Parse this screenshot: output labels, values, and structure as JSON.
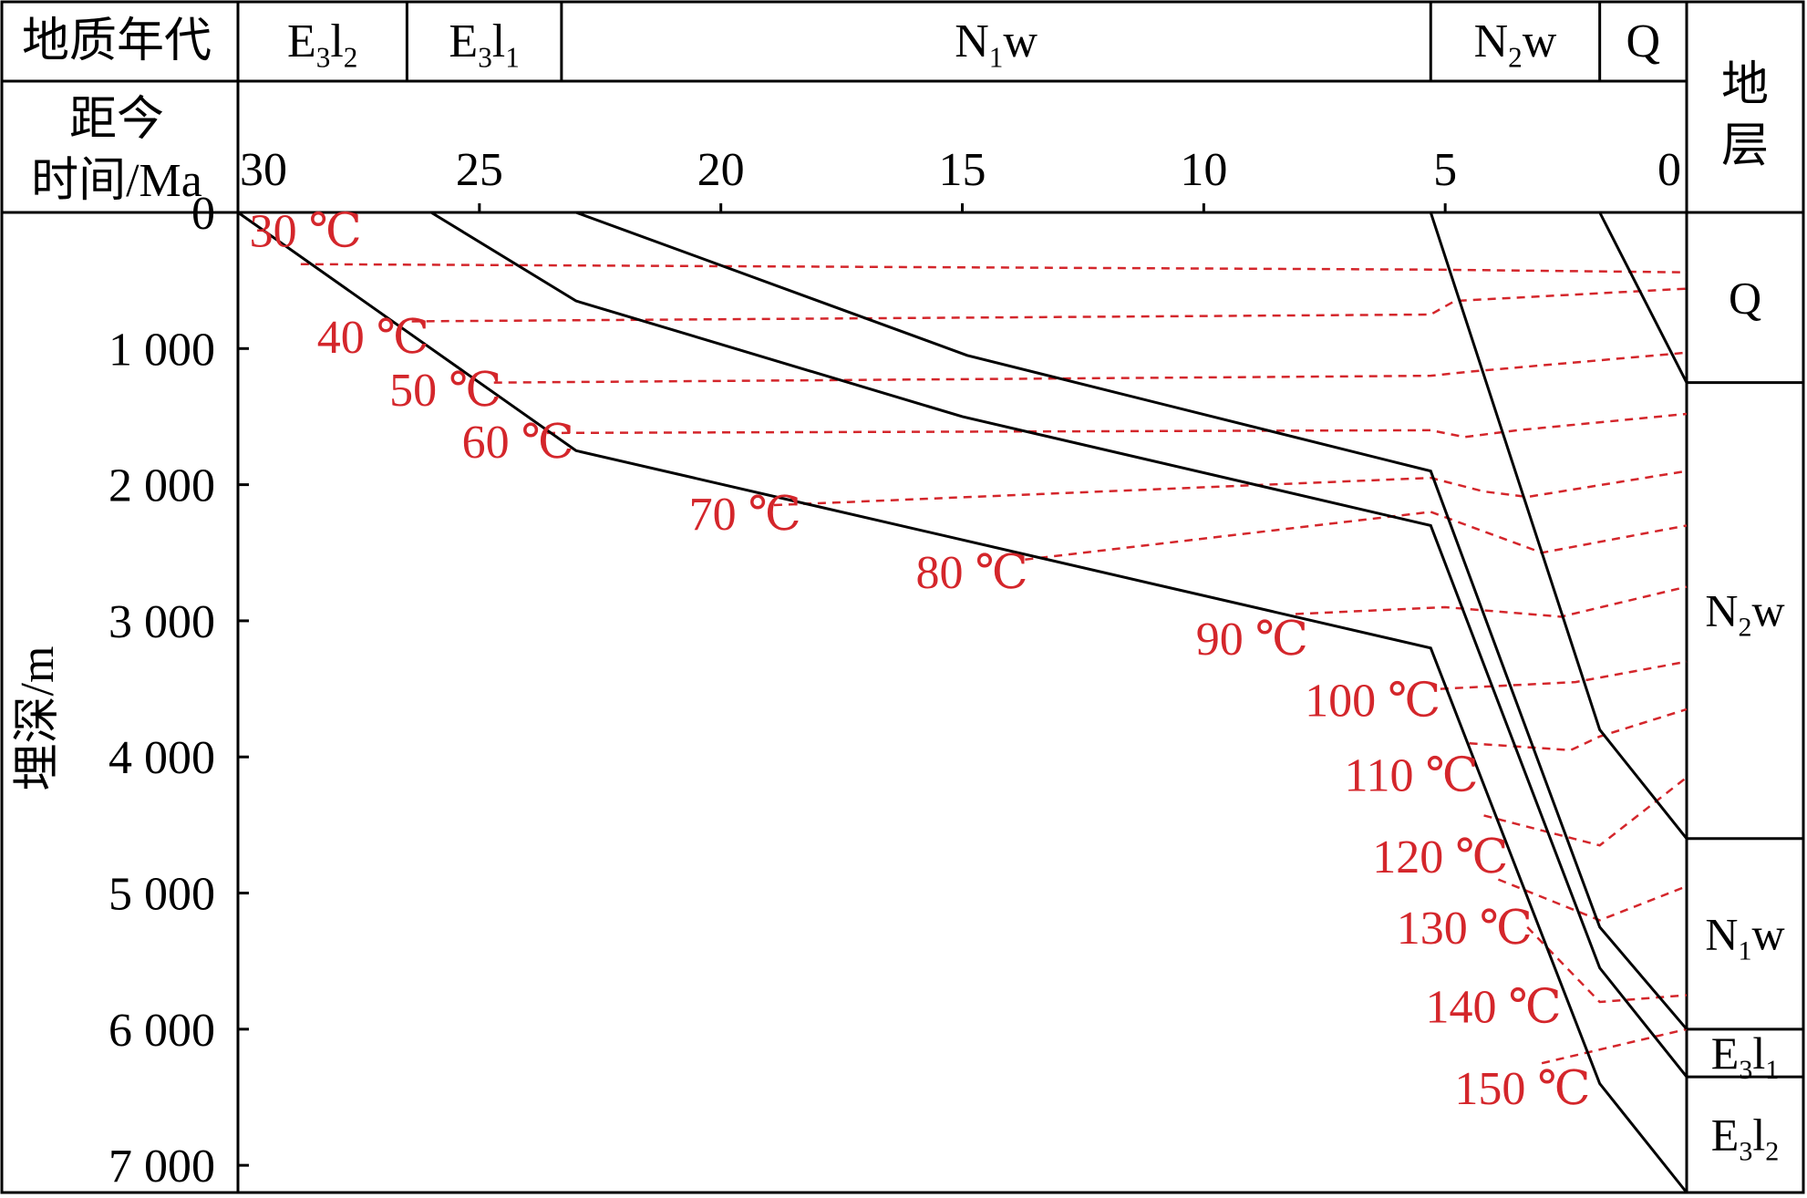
{
  "header": {
    "era_label": "地质年代",
    "time_label_line1": "距今",
    "time_label_line2": "时间/Ma",
    "strata_label_line1": "地",
    "strata_label_line2": "层",
    "depth_label": "埋深/m"
  },
  "periods": [
    {
      "main": "E",
      "sub": "3",
      "main2": "l",
      "sub2": "2",
      "start_ma": 30,
      "end_ma": 26.5
    },
    {
      "main": "E",
      "sub": "3",
      "main2": "l",
      "sub2": "1",
      "start_ma": 26.5,
      "end_ma": 23.3
    },
    {
      "main": "N",
      "sub": "1",
      "main2": "w",
      "sub2": "",
      "start_ma": 23.3,
      "end_ma": 5.3
    },
    {
      "main": "N",
      "sub": "2",
      "main2": "w",
      "sub2": "",
      "start_ma": 5.3,
      "end_ma": 1.8
    },
    {
      "main": "Q",
      "sub": "",
      "main2": "",
      "sub2": "",
      "start_ma": 1.8,
      "end_ma": 0
    }
  ],
  "strata_column": [
    {
      "main": "Q",
      "sub": "",
      "main2": "",
      "sub2": "",
      "top_m": 0,
      "base_m": 1250
    },
    {
      "main": "N",
      "sub": "2",
      "main2": "w",
      "sub2": "",
      "top_m": 1250,
      "base_m": 4600
    },
    {
      "main": "N",
      "sub": "1",
      "main2": "w",
      "sub2": "",
      "top_m": 4600,
      "base_m": 6000
    },
    {
      "main": "E",
      "sub": "3",
      "main2": "l",
      "sub2": "1",
      "top_m": 6000,
      "base_m": 6350
    },
    {
      "main": "E",
      "sub": "3",
      "main2": "l",
      "sub2": "2",
      "top_m": 6350,
      "base_m": 7200
    }
  ],
  "chart_data": {
    "type": "line",
    "xlabel": "距今时间/Ma",
    "ylabel": "埋深/m",
    "xlim": [
      30,
      0
    ],
    "ylim": [
      0,
      7200
    ],
    "x_ticks": [
      30,
      25,
      20,
      15,
      10,
      5,
      0
    ],
    "x_tick_labels": [
      "30",
      "25",
      "20",
      "15",
      "10",
      "5",
      "0"
    ],
    "y_ticks": [
      0,
      1000,
      2000,
      3000,
      4000,
      5000,
      6000,
      7000
    ],
    "y_tick_labels": [
      "0",
      "1 000",
      "2 000",
      "3 000",
      "4 000",
      "5 000",
      "6 000",
      "7 000"
    ],
    "burial_curves": [
      {
        "points": [
          [
            30,
            0
          ],
          [
            23.0,
            1750
          ],
          [
            5.3,
            3200
          ],
          [
            1.8,
            6400
          ],
          [
            0,
            7200
          ]
        ]
      },
      {
        "points": [
          [
            26.0,
            0
          ],
          [
            23.0,
            650
          ],
          [
            15.0,
            1500
          ],
          [
            5.3,
            2300
          ],
          [
            1.8,
            5550
          ],
          [
            0,
            6350
          ]
        ]
      },
      {
        "points": [
          [
            23.0,
            0
          ],
          [
            14.9,
            1050
          ],
          [
            5.3,
            1900
          ],
          [
            1.8,
            5250
          ],
          [
            0,
            6000
          ]
        ]
      },
      {
        "points": [
          [
            5.3,
            0
          ],
          [
            1.8,
            3800
          ],
          [
            0,
            4600
          ]
        ]
      },
      {
        "points": [
          [
            1.8,
            0
          ],
          [
            0,
            1250
          ]
        ]
      }
    ],
    "isotherms": [
      {
        "label": "30 ℃",
        "label_at": [
          28.6,
          250
        ],
        "points": [
          [
            28.7,
            380
          ],
          [
            5.3,
            420
          ],
          [
            0,
            440
          ]
        ]
      },
      {
        "label": "40 ℃",
        "label_at": [
          27.2,
          1030
        ],
        "points": [
          [
            26.4,
            800
          ],
          [
            5.3,
            750
          ],
          [
            4.8,
            650
          ],
          [
            0,
            560
          ]
        ]
      },
      {
        "label": "50 ℃",
        "label_at": [
          25.7,
          1420
        ],
        "points": [
          [
            24.7,
            1250
          ],
          [
            5.3,
            1200
          ],
          [
            4.5,
            1170
          ],
          [
            0,
            1030
          ]
        ]
      },
      {
        "label": "60 ℃",
        "label_at": [
          24.2,
          1800
        ],
        "points": [
          [
            23.6,
            1620
          ],
          [
            5.3,
            1600
          ],
          [
            4.6,
            1650
          ],
          [
            3.5,
            1600
          ],
          [
            0,
            1480
          ]
        ]
      },
      {
        "label": "70 ℃",
        "label_at": [
          19.5,
          2330
        ],
        "points": [
          [
            18.9,
            2150
          ],
          [
            5.3,
            1950
          ],
          [
            4.2,
            2050
          ],
          [
            3.3,
            2090
          ],
          [
            0,
            1900
          ]
        ]
      },
      {
        "label": "80 ℃",
        "label_at": [
          14.8,
          2760
        ],
        "points": [
          [
            13.7,
            2550
          ],
          [
            5.3,
            2200
          ],
          [
            3.0,
            2500
          ],
          [
            0,
            2300
          ]
        ]
      },
      {
        "label": "90 ℃",
        "label_at": [
          9.0,
          3250
        ],
        "points": [
          [
            8.1,
            2950
          ],
          [
            5.0,
            2900
          ],
          [
            2.6,
            2970
          ],
          [
            0,
            2750
          ]
        ]
      },
      {
        "label": "100 ℃",
        "label_at": [
          6.5,
          3700
        ],
        "points": [
          [
            5.1,
            3500
          ],
          [
            2.3,
            3450
          ],
          [
            0,
            3300
          ]
        ]
      },
      {
        "label": "110 ℃",
        "label_at": [
          5.7,
          4250
        ],
        "points": [
          [
            4.5,
            3900
          ],
          [
            2.4,
            3950
          ],
          [
            1.8,
            3850
          ],
          [
            0,
            3650
          ]
        ]
      },
      {
        "label": "120 ℃",
        "label_at": [
          5.1,
          4850
        ],
        "points": [
          [
            4.2,
            4430
          ],
          [
            1.8,
            4650
          ],
          [
            0,
            4150
          ]
        ]
      },
      {
        "label": "130 ℃",
        "label_at": [
          4.6,
          5370
        ],
        "points": [
          [
            3.9,
            4900
          ],
          [
            1.8,
            5200
          ],
          [
            0,
            4950
          ]
        ]
      },
      {
        "label": "140 ℃",
        "label_at": [
          4.0,
          5950
        ],
        "points": [
          [
            3.3,
            5250
          ],
          [
            1.8,
            5800
          ],
          [
            0,
            5750
          ]
        ]
      },
      {
        "label": "150 ℃",
        "label_at": [
          3.4,
          6550
        ],
        "points": [
          [
            3.0,
            6250
          ],
          [
            2.4,
            6200
          ],
          [
            0,
            6000
          ]
        ]
      }
    ]
  }
}
